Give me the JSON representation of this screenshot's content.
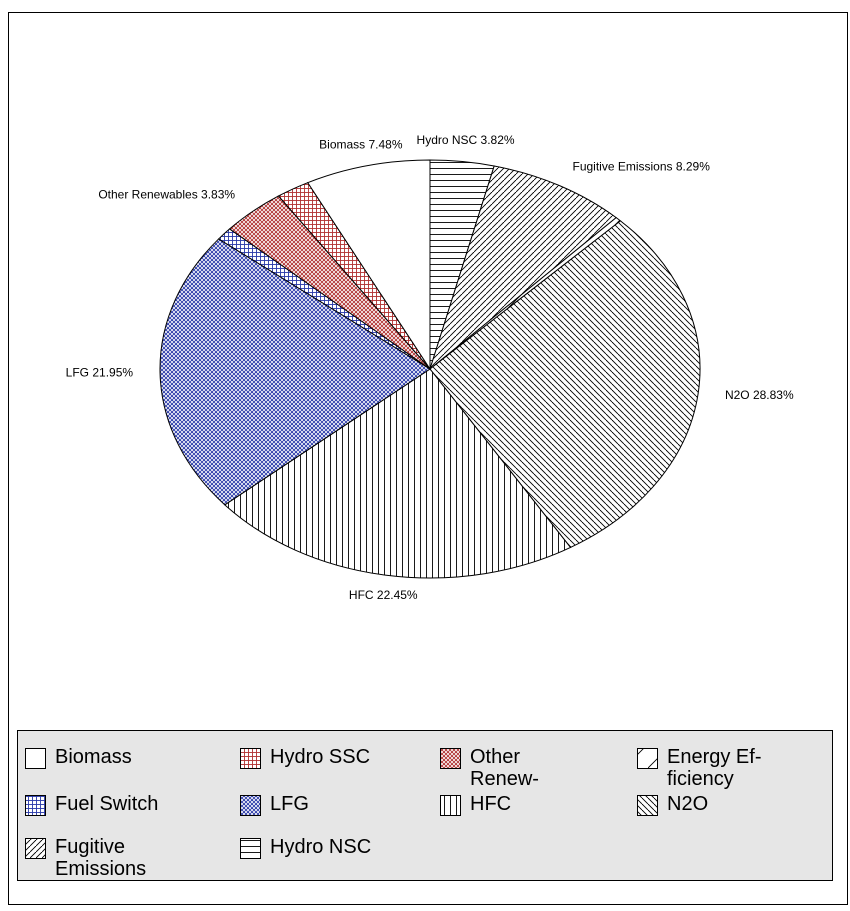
{
  "chart_data": {
    "type": "pie",
    "categories": [
      "Biomass",
      "Hydro SSC",
      "Other Renew-",
      "Energy Ef-ficiency",
      "Fuel Switch",
      "LFG",
      "HFC",
      "N2O",
      "Fugitive Emissions",
      "Hydro NSC"
    ],
    "values": [
      7.48,
      2.0,
      3.83,
      0.35,
      1.0,
      21.95,
      22.45,
      28.83,
      8.29,
      3.82
    ],
    "value_labels": [
      "Biomass 7.48%",
      null,
      "Other Renewables 3.83%",
      null,
      null,
      "LFG 21.95%",
      "HFC 22.45%",
      "N2O 28.83%",
      "Fugitive Emissions 8.29%",
      "Hydro NSC 3.82%"
    ],
    "colors": [
      "#000000",
      "#b03030",
      "#b03030",
      "#000000",
      "#2838a8",
      "#2838a8",
      "#000000",
      "#000000",
      "#000000",
      "#000000"
    ],
    "legend": "bottom"
  }
}
